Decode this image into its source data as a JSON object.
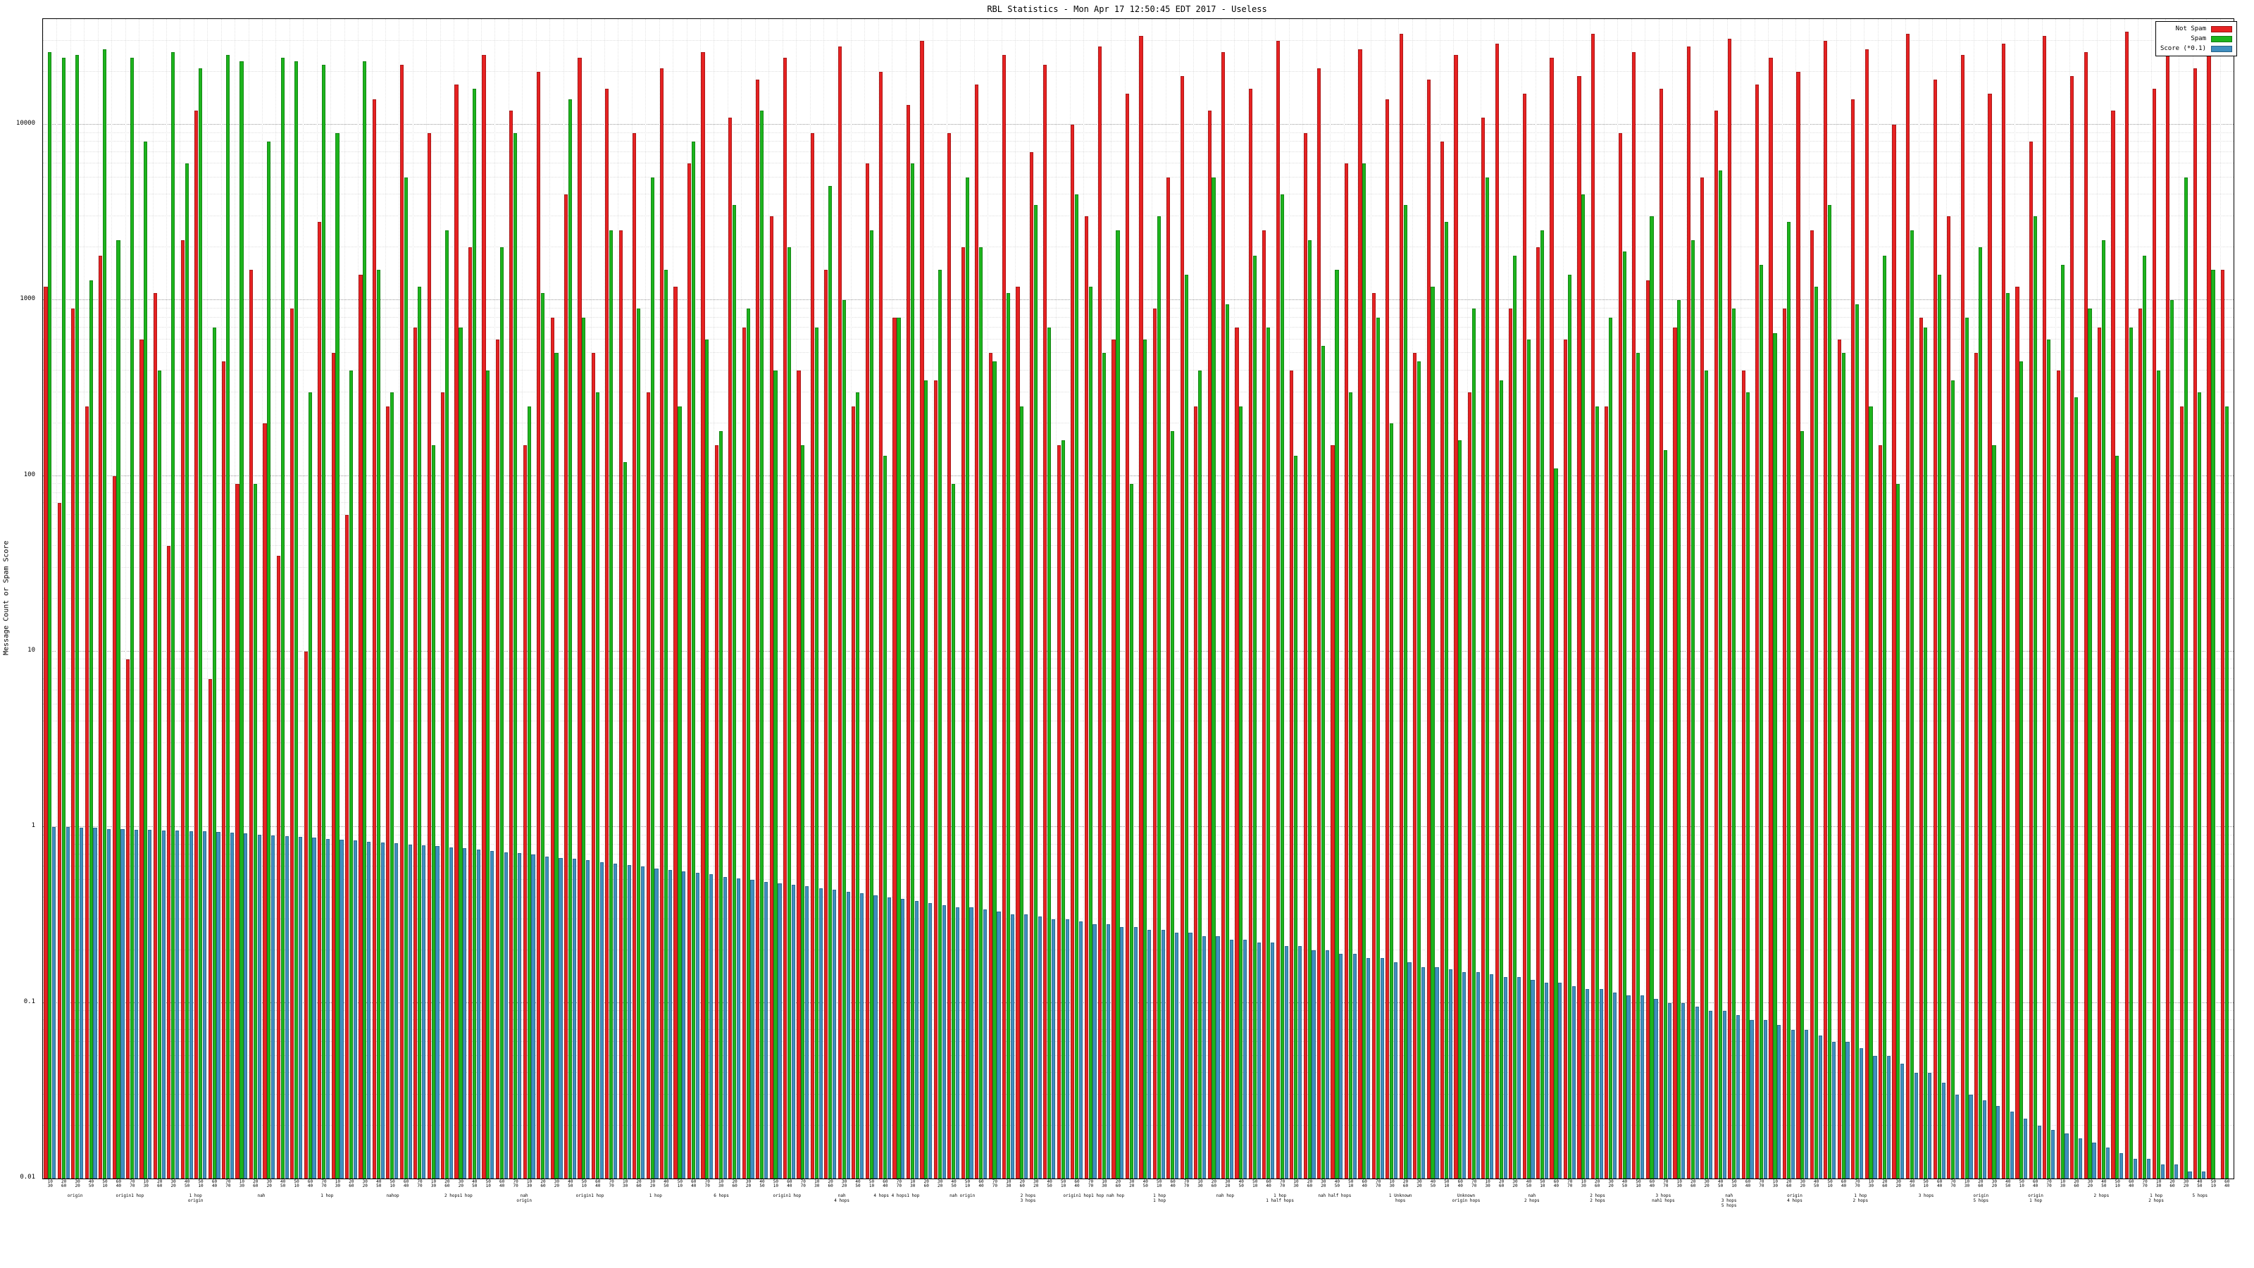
{
  "chart_data": {
    "type": "bar",
    "title": "RBL Statistics - Mon Apr 17 12:50:45 EDT 2017 - Useless",
    "ylabel": "Message Count or Spam Score",
    "xlabel": "",
    "y_scale": "log",
    "ylim": [
      0.01,
      40000
    ],
    "y_tick_labels": [
      "0.01",
      "0.1",
      "1",
      "10",
      "100",
      "1000",
      "10000"
    ],
    "grid": true,
    "legend_position": "top-right",
    "colors": {
      "not_spam": "#e62222",
      "spam": "#1db41d",
      "score": "#3f8fc0",
      "grid_major": "#9a9a9a",
      "grid_minor": "#dedede",
      "axis": "#000000"
    },
    "x_tick_labels_pattern": [
      "10",
      "20",
      "30",
      "40",
      "50",
      "60",
      "70"
    ],
    "x_annotations": [
      {
        "pos": 1.5,
        "text": "origin"
      },
      {
        "pos": 4,
        "text": "origin1 hop"
      },
      {
        "pos": 7,
        "text": "1 hop\norigin"
      },
      {
        "pos": 10,
        "text": "nah"
      },
      {
        "pos": 13,
        "text": "1 hop"
      },
      {
        "pos": 16,
        "text": "nahop"
      },
      {
        "pos": 19,
        "text": "2 hops1 hop"
      },
      {
        "pos": 22,
        "text": "nah\norigin"
      },
      {
        "pos": 25,
        "text": "origin1 hop"
      },
      {
        "pos": 28,
        "text": "1 hop"
      },
      {
        "pos": 31,
        "text": "6 hops"
      },
      {
        "pos": 34,
        "text": "origin1 hop"
      },
      {
        "pos": 36.5,
        "text": "nah\n4 hops"
      },
      {
        "pos": 39,
        "text": "4 hops 4 hops1 hop"
      },
      {
        "pos": 42,
        "text": "nah origin"
      },
      {
        "pos": 45,
        "text": "2 hops\n3 hops"
      },
      {
        "pos": 48,
        "text": "origin1 hop1 hop nah hop"
      },
      {
        "pos": 51,
        "text": "1 hop\n1 hop"
      },
      {
        "pos": 54,
        "text": "nah hop"
      },
      {
        "pos": 56.5,
        "text": "1 hop\n1 half hops"
      },
      {
        "pos": 59,
        "text": "nah half hops"
      },
      {
        "pos": 62,
        "text": "1 Unknown\nhops"
      },
      {
        "pos": 65,
        "text": "Unknown\norigin hops"
      },
      {
        "pos": 68,
        "text": "nah\n2 hops"
      },
      {
        "pos": 71,
        "text": "2 hops\n2 hops"
      },
      {
        "pos": 74,
        "text": "3 hops\nnah1 hops"
      },
      {
        "pos": 77,
        "text": "nah\n3 hops\n5 hops"
      },
      {
        "pos": 80,
        "text": "origin\n4 hops"
      },
      {
        "pos": 83,
        "text": "1 hop\n2 hops"
      },
      {
        "pos": 86,
        "text": "3 hops"
      },
      {
        "pos": 88.5,
        "text": "origin\n5 hops"
      },
      {
        "pos": 91,
        "text": "origin\n1 hop"
      },
      {
        "pos": 94,
        "text": "2 hops"
      },
      {
        "pos": 96.5,
        "text": "1 hop\n2 hops"
      },
      {
        "pos": 98.5,
        "text": "5 hops"
      }
    ],
    "series": [
      {
        "name": "Not Spam",
        "color_key": "not_spam",
        "values": [
          1200,
          70,
          900,
          250,
          1800,
          100,
          9,
          600,
          1100,
          40,
          2200,
          12000,
          7,
          450,
          90,
          1500,
          200,
          35,
          900,
          10,
          2800,
          500,
          60,
          1400,
          14000,
          250,
          22000,
          700,
          9000,
          300,
          17000,
          2000,
          25000,
          600,
          12000,
          150,
          20000,
          800,
          4000,
          24000,
          500,
          16000,
          2500,
          9000,
          300,
          21000,
          1200,
          6000,
          26000,
          150,
          11000,
          700,
          18000,
          3000,
          24000,
          400,
          9000,
          1500,
          28000,
          250,
          6000,
          20000,
          800,
          13000,
          30000,
          350,
          9000,
          2000,
          17000,
          500,
          25000,
          1200,
          7000,
          22000,
          150,
          10000,
          3000,
          28000,
          600,
          15000,
          32000,
          900,
          5000,
          19000,
          250,
          12000,
          26000,
          700,
          16000,
          2500,
          30000,
          400,
          9000,
          21000,
          150,
          6000,
          27000,
          1100,
          14000,
          33000,
          500,
          18000,
          8000,
          25000,
          300,
          11000,
          29000,
          900,
          15000,
          2000,
          24000,
          600,
          19000,
          33000,
          250,
          9000,
          26000,
          1300,
          16000,
          700,
          28000,
          5000,
          12000,
          31000,
          400,
          17000,
          24000,
          900,
          20000,
          2500,
          30000,
          600,
          14000,
          27000,
          150,
          10000,
          33000,
          800,
          18000,
          3000,
          25000,
          500,
          15000,
          29000,
          1200,
          8000,
          32000,
          400,
          19000,
          26000,
          700,
          12000,
          34000,
          900,
          16000,
          30000,
          250,
          21000,
          35000,
          1500
        ]
      },
      {
        "name": "Spam",
        "color_key": "spam",
        "values": [
          26000,
          24000,
          25000,
          1300,
          27000,
          2200,
          24000,
          8000,
          400,
          26000,
          6000,
          21000,
          700,
          25000,
          23000,
          90,
          8000,
          24000,
          23000,
          300,
          22000,
          9000,
          400,
          23000,
          1500,
          300,
          5000,
          1200,
          150,
          2500,
          700,
          16000,
          400,
          2000,
          9000,
          250,
          1100,
          500,
          14000,
          800,
          300,
          2500,
          120,
          900,
          5000,
          1500,
          250,
          8000,
          600,
          180,
          3500,
          900,
          12000,
          400,
          2000,
          150,
          700,
          4500,
          1000,
          300,
          2500,
          130,
          800,
          6000,
          350,
          1500,
          90,
          5000,
          2000,
          450,
          1100,
          250,
          3500,
          700,
          160,
          4000,
          1200,
          500,
          2500,
          90,
          600,
          3000,
          180,
          1400,
          400,
          5000,
          950,
          250,
          1800,
          700,
          4000,
          130,
          2200,
          550,
          1500,
          300,
          6000,
          800,
          200,
          3500,
          450,
          1200,
          2800,
          160,
          900,
          5000,
          350,
          1800,
          600,
          2500,
          110,
          1400,
          4000,
          250,
          800,
          1900,
          500,
          3000,
          140,
          1000,
          2200,
          400,
          5500,
          900,
          300,
          1600,
          650,
          2800,
          180,
          1200,
          3500,
          500,
          950,
          250,
          1800,
          90,
          2500,
          700,
          1400,
          350,
          800,
          2000,
          150,
          1100,
          450,
          3000,
          600,
          1600,
          280,
          900,
          2200,
          130,
          700,
          1800,
          400,
          1000,
          5000,
          300,
          1500,
          250
        ]
      },
      {
        "name": "Score (*0.1)",
        "color_key": "score",
        "values": [
          1.0,
          1.0,
          0.99,
          0.99,
          0.98,
          0.98,
          0.97,
          0.97,
          0.96,
          0.96,
          0.95,
          0.95,
          0.94,
          0.93,
          0.92,
          0.91,
          0.9,
          0.89,
          0.88,
          0.87,
          0.86,
          0.85,
          0.84,
          0.83,
          0.82,
          0.81,
          0.8,
          0.79,
          0.78,
          0.77,
          0.76,
          0.75,
          0.73,
          0.72,
          0.71,
          0.7,
          0.68,
          0.67,
          0.66,
          0.65,
          0.63,
          0.62,
          0.61,
          0.6,
          0.58,
          0.57,
          0.56,
          0.55,
          0.54,
          0.52,
          0.51,
          0.5,
          0.49,
          0.48,
          0.47,
          0.46,
          0.45,
          0.44,
          0.43,
          0.42,
          0.41,
          0.4,
          0.39,
          0.38,
          0.37,
          0.36,
          0.35,
          0.35,
          0.34,
          0.33,
          0.32,
          0.32,
          0.31,
          0.3,
          0.3,
          0.29,
          0.28,
          0.28,
          0.27,
          0.27,
          0.26,
          0.26,
          0.25,
          0.25,
          0.24,
          0.24,
          0.23,
          0.23,
          0.22,
          0.22,
          0.21,
          0.21,
          0.2,
          0.2,
          0.19,
          0.19,
          0.18,
          0.18,
          0.17,
          0.17,
          0.16,
          0.16,
          0.155,
          0.15,
          0.15,
          0.145,
          0.14,
          0.14,
          0.135,
          0.13,
          0.13,
          0.125,
          0.12,
          0.12,
          0.115,
          0.11,
          0.11,
          0.105,
          0.1,
          0.1,
          0.095,
          0.09,
          0.09,
          0.085,
          0.08,
          0.08,
          0.075,
          0.07,
          0.07,
          0.065,
          0.06,
          0.06,
          0.055,
          0.05,
          0.05,
          0.045,
          0.04,
          0.04,
          0.035,
          0.03,
          0.03,
          0.028,
          0.026,
          0.024,
          0.022,
          0.02,
          0.019,
          0.018,
          0.017,
          0.016,
          0.015,
          0.014,
          0.013,
          0.013,
          0.012,
          0.012,
          0.011,
          0.011,
          0.01,
          0.01
        ]
      }
    ]
  }
}
